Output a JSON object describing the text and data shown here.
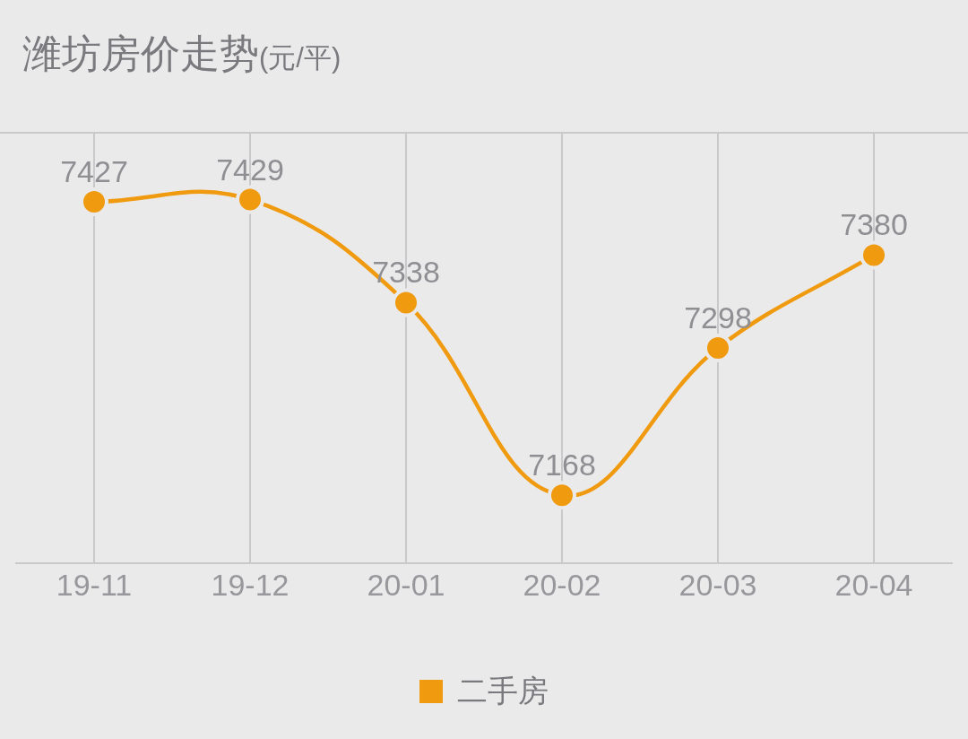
{
  "chart_data": {
    "type": "line",
    "title": "潍坊房价走势(元/平)",
    "categories": [
      "19-11",
      "19-12",
      "20-01",
      "20-02",
      "20-03",
      "20-04"
    ],
    "series": [
      {
        "name": "二手房",
        "color": "#f09a0f",
        "values": [
          7427,
          7429,
          7338,
          7168,
          7298,
          7380
        ]
      }
    ],
    "ylim": [
      7108,
      7488
    ],
    "data_labels": true,
    "grid": "x",
    "legend": "bottom",
    "tick_labels": "x",
    "marker": "circle",
    "line_style": "solid"
  }
}
